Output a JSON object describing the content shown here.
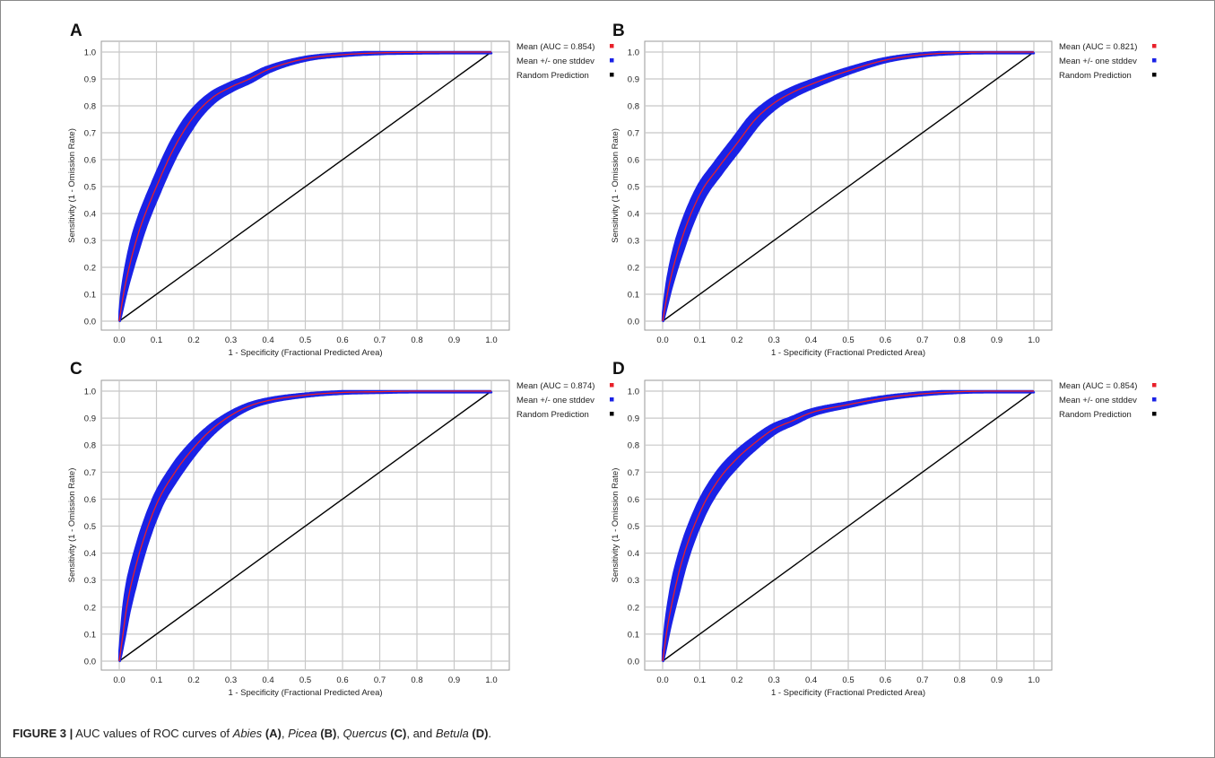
{
  "figure": {
    "label": "FIGURE 3 |",
    "caption_parts": [
      {
        "text": " AUC values of ROC curves of ",
        "style": "normal"
      },
      {
        "text": "Abies",
        "style": "italic"
      },
      {
        "text": " ",
        "style": "normal"
      },
      {
        "text": "(A)",
        "style": "bold"
      },
      {
        "text": ", ",
        "style": "normal"
      },
      {
        "text": "Picea",
        "style": "italic"
      },
      {
        "text": " ",
        "style": "normal"
      },
      {
        "text": "(B)",
        "style": "bold"
      },
      {
        "text": ", ",
        "style": "normal"
      },
      {
        "text": "Quercus",
        "style": "italic"
      },
      {
        "text": " ",
        "style": "normal"
      },
      {
        "text": "(C)",
        "style": "bold"
      },
      {
        "text": ", and ",
        "style": "normal"
      },
      {
        "text": "Betula",
        "style": "italic"
      },
      {
        "text": " ",
        "style": "normal"
      },
      {
        "text": "(D)",
        "style": "bold"
      },
      {
        "text": ".",
        "style": "normal"
      }
    ]
  },
  "colors": {
    "mean_curve": "#e8202a",
    "stddev_band": "#1a22e6",
    "random_line": "#000000",
    "grid": "#c8c8c8",
    "plot_border": "#9a9a9a"
  },
  "chart_data": [
    {
      "panel": "A",
      "type": "line",
      "xlabel": "1 - Specificity (Fractional Predicted Area)",
      "ylabel": "Sensitivity (1 - Omission Rate)",
      "xlim": [
        0,
        1
      ],
      "ylim": [
        0,
        1
      ],
      "x_ticks": [
        "0.0",
        "0.1",
        "0.2",
        "0.3",
        "0.4",
        "0.5",
        "0.6",
        "0.7",
        "0.8",
        "0.9",
        "1.0"
      ],
      "y_ticks": [
        "0.0",
        "0.1",
        "0.2",
        "0.3",
        "0.4",
        "0.5",
        "0.6",
        "0.7",
        "0.8",
        "0.9",
        "1.0"
      ],
      "grid": true,
      "legend_position": "right",
      "series": [
        {
          "name": "Mean (AUC = 0.854)",
          "color": "#e8202a",
          "x": [
            0,
            0.01,
            0.02,
            0.05,
            0.1,
            0.15,
            0.2,
            0.25,
            0.3,
            0.35,
            0.4,
            0.5,
            0.6,
            0.7,
            0.8,
            0.9,
            1.0
          ],
          "y": [
            0,
            0.09,
            0.16,
            0.32,
            0.5,
            0.65,
            0.76,
            0.83,
            0.87,
            0.9,
            0.935,
            0.975,
            0.99,
            0.997,
            0.999,
            1.0,
            1.0
          ]
        },
        {
          "name": "Mean +/- one stddev",
          "color": "#1a22e6",
          "band_halfwidth": 0.02
        },
        {
          "name": "Random Prediction",
          "color": "#000000",
          "x": [
            0,
            1
          ],
          "y": [
            0,
            1
          ]
        }
      ]
    },
    {
      "panel": "B",
      "type": "line",
      "xlabel": "1 - Specificity (Fractional Predicted Area)",
      "ylabel": "Sensitivity (1 - Omission Rate)",
      "xlim": [
        0,
        1
      ],
      "ylim": [
        0,
        1
      ],
      "x_ticks": [
        "0.0",
        "0.1",
        "0.2",
        "0.3",
        "0.4",
        "0.5",
        "0.6",
        "0.7",
        "0.8",
        "0.9",
        "1.0"
      ],
      "y_ticks": [
        "0.0",
        "0.1",
        "0.2",
        "0.3",
        "0.4",
        "0.5",
        "0.6",
        "0.7",
        "0.8",
        "0.9",
        "1.0"
      ],
      "grid": true,
      "legend_position": "right",
      "series": [
        {
          "name": "Mean (AUC = 0.821)",
          "color": "#e8202a",
          "x": [
            0,
            0.01,
            0.02,
            0.05,
            0.1,
            0.15,
            0.2,
            0.25,
            0.3,
            0.35,
            0.4,
            0.5,
            0.6,
            0.7,
            0.8,
            0.9,
            1.0
          ],
          "y": [
            0,
            0.08,
            0.15,
            0.3,
            0.47,
            0.57,
            0.66,
            0.75,
            0.81,
            0.85,
            0.88,
            0.93,
            0.97,
            0.99,
            0.998,
            1.0,
            1.0
          ]
        },
        {
          "name": "Mean +/- one stddev",
          "color": "#1a22e6",
          "band_halfwidth": 0.02
        },
        {
          "name": "Random Prediction",
          "color": "#000000",
          "x": [
            0,
            1
          ],
          "y": [
            0,
            1
          ]
        }
      ]
    },
    {
      "panel": "C",
      "type": "line",
      "xlabel": "1 - Specificity (Fractional Predicted Area)",
      "ylabel": "Sensitivity (1 - Omission Rate)",
      "xlim": [
        0,
        1
      ],
      "ylim": [
        0,
        1
      ],
      "x_ticks": [
        "0.0",
        "0.1",
        "0.2",
        "0.3",
        "0.4",
        "0.5",
        "0.6",
        "0.7",
        "0.8",
        "0.9",
        "1.0"
      ],
      "y_ticks": [
        "0.0",
        "0.1",
        "0.2",
        "0.3",
        "0.4",
        "0.5",
        "0.6",
        "0.7",
        "0.8",
        "0.9",
        "1.0"
      ],
      "grid": true,
      "legend_position": "right",
      "series": [
        {
          "name": "Mean (AUC = 0.874)",
          "color": "#e8202a",
          "x": [
            0,
            0.01,
            0.02,
            0.05,
            0.1,
            0.15,
            0.2,
            0.25,
            0.3,
            0.35,
            0.4,
            0.5,
            0.6,
            0.7,
            0.8,
            0.9,
            1.0
          ],
          "y": [
            0,
            0.1,
            0.2,
            0.38,
            0.58,
            0.7,
            0.79,
            0.86,
            0.91,
            0.945,
            0.965,
            0.985,
            0.995,
            0.998,
            1.0,
            1.0,
            1.0
          ]
        },
        {
          "name": "Mean +/- one stddev",
          "color": "#1a22e6",
          "band_halfwidth": 0.02
        },
        {
          "name": "Random Prediction",
          "color": "#000000",
          "x": [
            0,
            1
          ],
          "y": [
            0,
            1
          ]
        }
      ]
    },
    {
      "panel": "D",
      "type": "line",
      "xlabel": "1 - Specificity (Fractional Predicted Area)",
      "ylabel": "Sensitivity (1 - Omission Rate)",
      "xlim": [
        0,
        1
      ],
      "ylim": [
        0,
        1
      ],
      "x_ticks": [
        "0.0",
        "0.1",
        "0.2",
        "0.3",
        "0.4",
        "0.5",
        "0.6",
        "0.7",
        "0.8",
        "0.9",
        "1.0"
      ],
      "y_ticks": [
        "0.0",
        "0.1",
        "0.2",
        "0.3",
        "0.4",
        "0.5",
        "0.6",
        "0.7",
        "0.8",
        "0.9",
        "1.0"
      ],
      "grid": true,
      "legend_position": "right",
      "series": [
        {
          "name": "Mean (AUC = 0.854)",
          "color": "#e8202a",
          "x": [
            0,
            0.01,
            0.02,
            0.05,
            0.1,
            0.15,
            0.2,
            0.25,
            0.3,
            0.35,
            0.4,
            0.5,
            0.6,
            0.7,
            0.8,
            0.9,
            1.0
          ],
          "y": [
            0,
            0.1,
            0.18,
            0.36,
            0.55,
            0.67,
            0.75,
            0.81,
            0.86,
            0.89,
            0.92,
            0.95,
            0.975,
            0.99,
            0.998,
            1.0,
            1.0
          ]
        },
        {
          "name": "Mean +/- one stddev",
          "color": "#1a22e6",
          "band_halfwidth": 0.02
        },
        {
          "name": "Random Prediction",
          "color": "#000000",
          "x": [
            0,
            1
          ],
          "y": [
            0,
            1
          ]
        }
      ]
    }
  ]
}
